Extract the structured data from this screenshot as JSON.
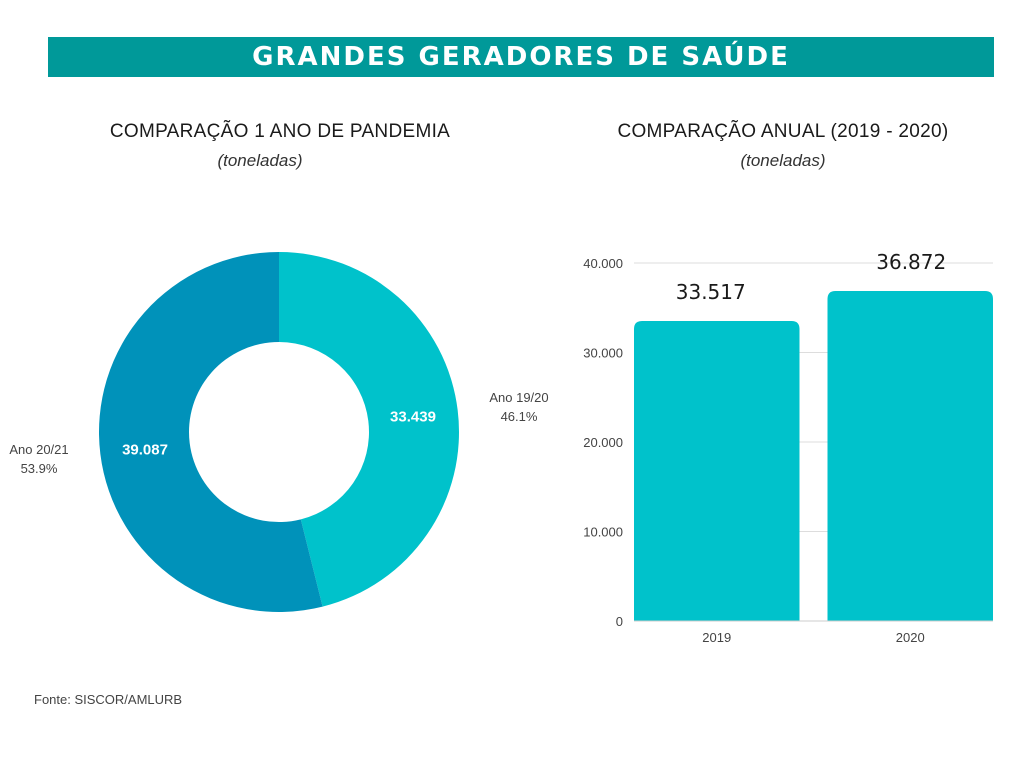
{
  "header": {
    "title": "GRANDES GERADORES DE SAÚDE"
  },
  "source": "Fonte: SISCOR/AMLURB",
  "colors": {
    "banner": "#009999",
    "cyan": "#00C2CB",
    "blue": "#0092BA"
  },
  "chart_data": [
    {
      "type": "pie",
      "title": "COMPARAÇÃO 1 ANO DE PANDEMIA",
      "subtitle": "(toneladas)",
      "slices": [
        {
          "label": "Ano 19/20",
          "value": 33439,
          "value_label": "33.439",
          "percent": "46.1%",
          "color": "#00C2CB"
        },
        {
          "label": "Ano 20/21",
          "value": 39087,
          "value_label": "39.087",
          "percent": "53.9%",
          "color": "#0092BA"
        }
      ]
    },
    {
      "type": "bar",
      "title": "COMPARAÇÃO ANUAL (2019 - 2020)",
      "subtitle": "(toneladas)",
      "categories": [
        "2019",
        "2020"
      ],
      "values": [
        33517,
        36872
      ],
      "value_labels": [
        "33.517",
        "36.872"
      ],
      "ylim": [
        0,
        40000
      ],
      "yticks": [
        0,
        10000,
        20000,
        30000,
        40000
      ],
      "ytick_labels": [
        "0",
        "10.000",
        "20.000",
        "30.000",
        "40.000"
      ],
      "grid": true,
      "color": "#00C2CB"
    }
  ]
}
